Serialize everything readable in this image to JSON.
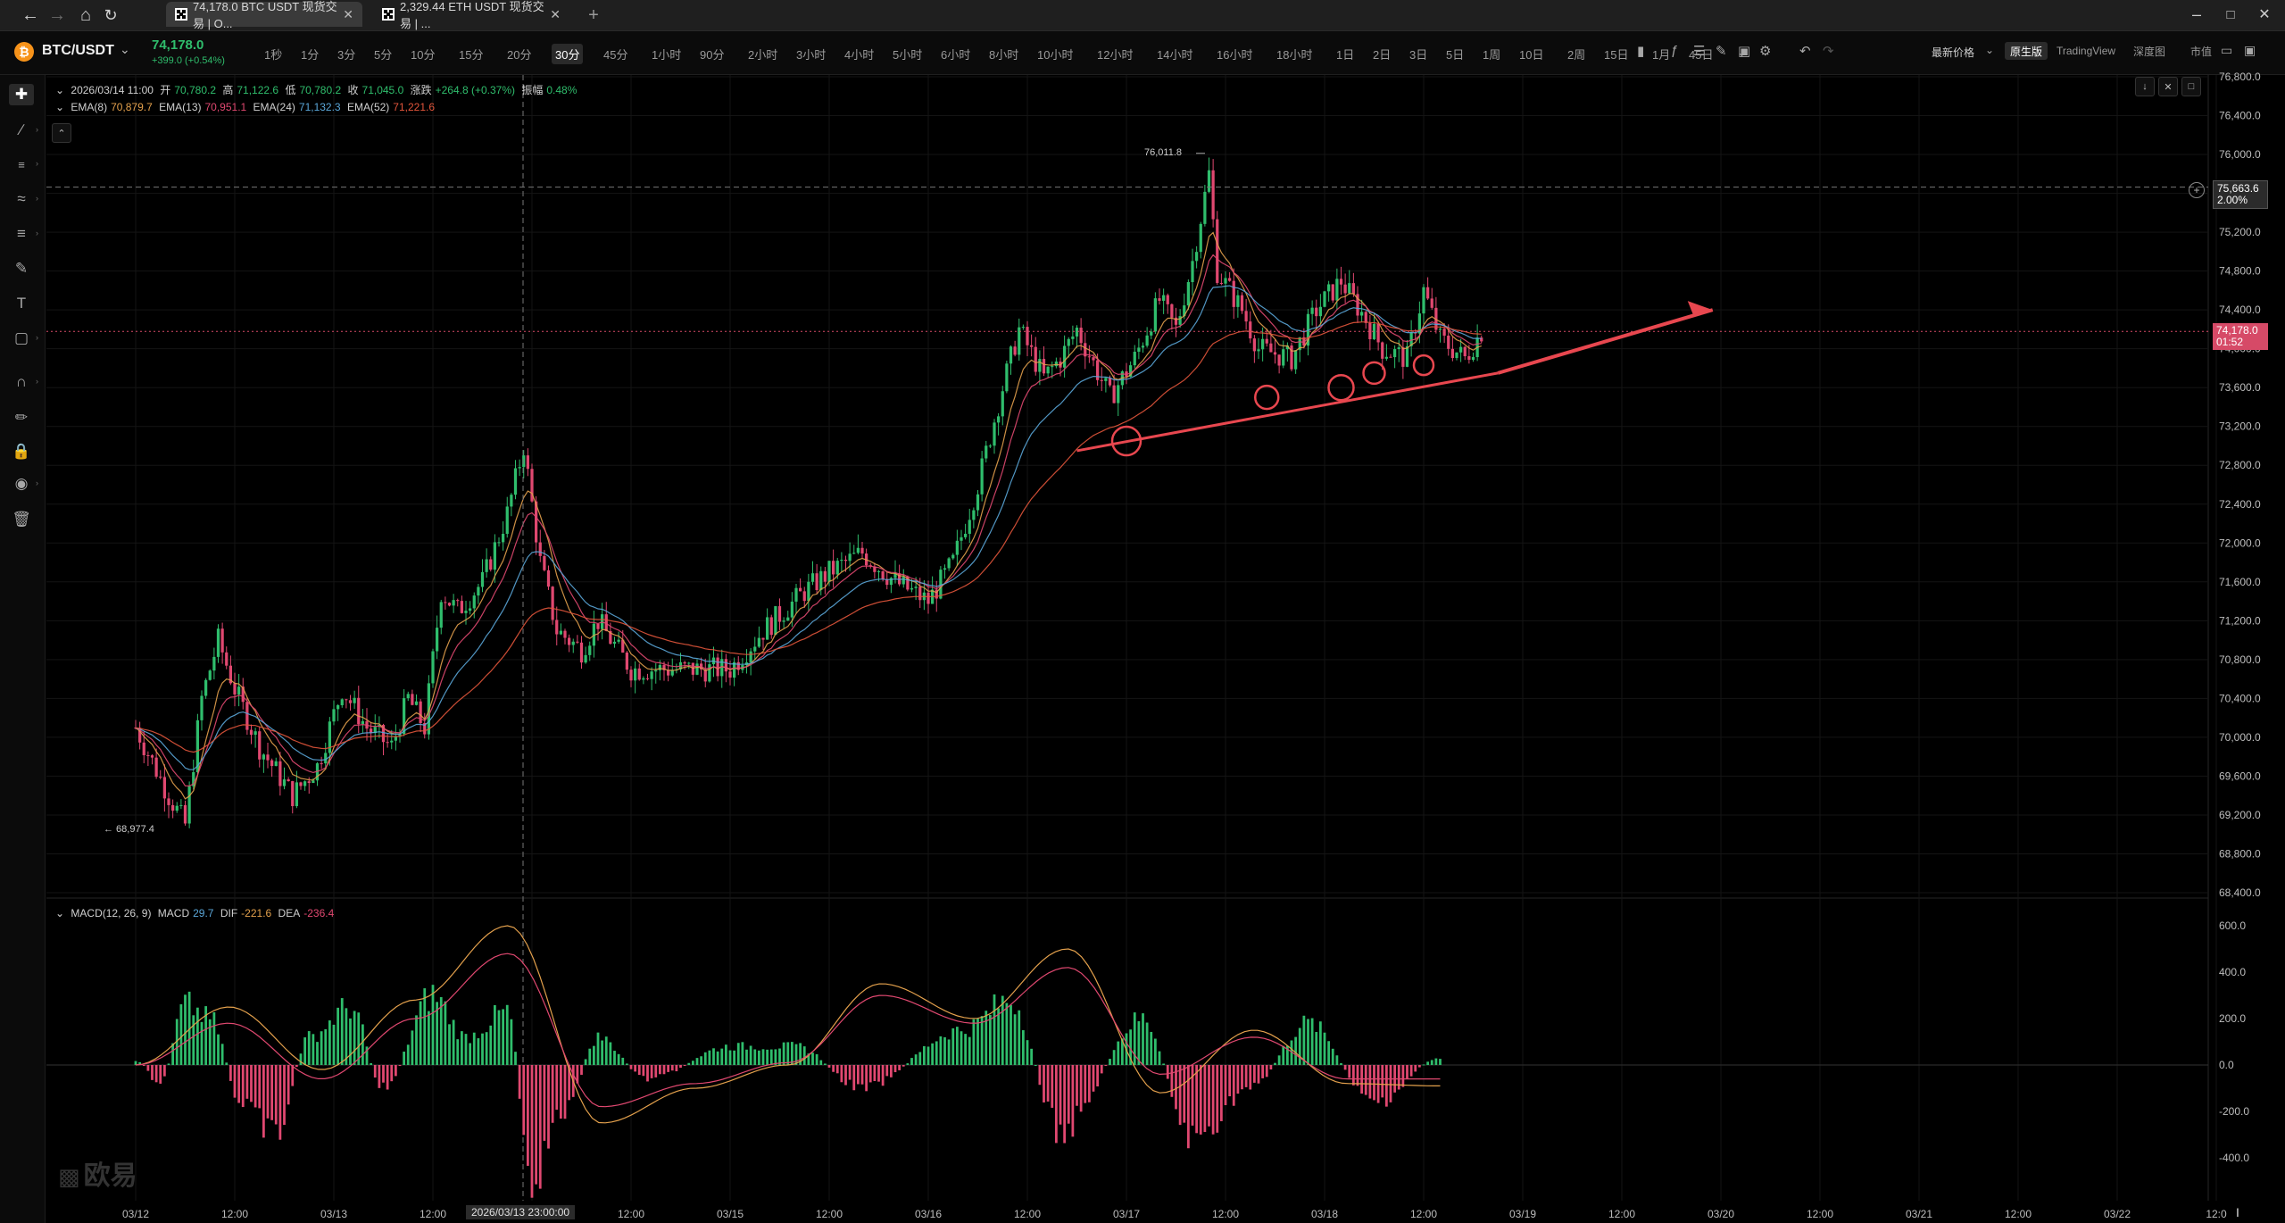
{
  "browser": {
    "tabs": [
      {
        "title": "74,178.0 BTC USDT 现货交易 | O...",
        "active": true
      },
      {
        "title": "2,329.44 ETH USDT 现货交易 | ...",
        "active": false
      }
    ],
    "new_tab": "+"
  },
  "pair": {
    "symbol": "BTC/USDT",
    "last_price": "74,178.0",
    "change": "+399.0 (+0.54%)"
  },
  "intervals": [
    "1秒",
    "1分",
    "3分",
    "5分",
    "10分",
    "15分",
    "20分",
    "30分",
    "45分",
    "1小时",
    "90分",
    "2小时",
    "3小时",
    "4小时",
    "5小时",
    "6小时",
    "8小时",
    "10小时",
    "12小时",
    "14小时",
    "16小时",
    "18小时",
    "1日",
    "2日",
    "3日",
    "5日",
    "1周",
    "10日",
    "2周",
    "15日",
    "1月",
    "45日"
  ],
  "active_interval": "30分",
  "header_right": {
    "price_type": "最新价格",
    "views": [
      "原生版",
      "TradingView",
      "深度图",
      "市值"
    ],
    "active_view": "原生版"
  },
  "ohlc_legend": {
    "date": "2026/03/14 11:00",
    "open_label": "开",
    "open": "70,780.2",
    "high_label": "高",
    "high": "71,122.6",
    "low_label": "低",
    "low": "70,780.2",
    "close_label": "收",
    "close": "71,045.0",
    "chg_label": "涨跌",
    "chg": "+264.8 (+0.37%)",
    "amp_label": "振幅",
    "amp": "0.48%"
  },
  "ema_legend": [
    {
      "name": "EMA(8)",
      "value": "70,879.7",
      "color": "#e3a04c"
    },
    {
      "name": "EMA(13)",
      "value": "70,951.1",
      "color": "#e04870"
    },
    {
      "name": "EMA(24)",
      "value": "71,132.3",
      "color": "#5aa6d8"
    },
    {
      "name": "EMA(52)",
      "value": "71,221.6",
      "color": "#e2553b"
    }
  ],
  "macd_legend": {
    "name": "MACD(12, 26, 9)",
    "macd_label": "MACD",
    "macd": "29.7",
    "dif_label": "DIF",
    "dif": "-221.6",
    "dea_label": "DEA",
    "dea": "-236.4"
  },
  "annotations": {
    "high_label": "76,011.8",
    "low_label": "← 68,977.4",
    "dashed_level": "75,663.6",
    "dashed_level_pct": "2.00%",
    "current_price": "74,178.0",
    "countdown": "01:52",
    "crosshair_time": "2026/03/13 23:00:00"
  },
  "watermark": "欧易",
  "colors": {
    "up": "#2fbd6c",
    "down": "#e04870",
    "accent_line": "#e8474f",
    "background": "#000000"
  },
  "chart_data": [
    {
      "type": "candlestick",
      "title": "",
      "ylim": [
        68400,
        76800
      ],
      "y_ticks": [
        "76,800.0",
        "76,400.0",
        "76,000.0",
        "75,600.0",
        "75,200.0",
        "74,800.0",
        "74,400.0",
        "74,000.0",
        "73,600.0",
        "73,200.0",
        "72,800.0",
        "72,400.0",
        "72,000.0",
        "71,600.0",
        "71,200.0",
        "70,800.0",
        "70,400.0",
        "70,000.0",
        "69,600.0",
        "69,200.0",
        "68,800.0",
        "68,400.0"
      ],
      "x_ticks": [
        "03/12",
        "12:00",
        "03/13",
        "12:00",
        "2026/03/13 23:00:00",
        "12:00",
        "03/15",
        "12:00",
        "03/16",
        "12:00",
        "03/17",
        "12:00",
        "03/18",
        "12:00",
        "03/19",
        "12:00",
        "03/20",
        "12:00",
        "03/21",
        "12:00",
        "03/22",
        "12:0"
      ],
      "close_path": [
        {
          "t": "03/12 00:00",
          "close": 70100
        },
        {
          "t": "03/12 04:00",
          "close": 69400
        },
        {
          "t": "03/12 06:00",
          "close": 69100
        },
        {
          "t": "03/12 08:00",
          "close": 70400
        },
        {
          "t": "03/12 10:00",
          "close": 71000
        },
        {
          "t": "03/12 12:00",
          "close": 70500
        },
        {
          "t": "03/12 15:00",
          "close": 69900
        },
        {
          "t": "03/12 19:00",
          "close": 69400
        },
        {
          "t": "03/12 22:00",
          "close": 69700
        },
        {
          "t": "03/13 01:00",
          "close": 70500
        },
        {
          "t": "03/13 04:00",
          "close": 70100
        },
        {
          "t": "03/13 07:00",
          "close": 69900
        },
        {
          "t": "03/13 09:00",
          "close": 70400
        },
        {
          "t": "03/13 11:00",
          "close": 70100
        },
        {
          "t": "03/13 13:00",
          "close": 71500
        },
        {
          "t": "03/13 15:00",
          "close": 71300
        },
        {
          "t": "03/13 18:00",
          "close": 71600
        },
        {
          "t": "03/13 21:00",
          "close": 72300
        },
        {
          "t": "03/13 23:00",
          "close": 73000
        },
        {
          "t": "03/14 01:00",
          "close": 71800
        },
        {
          "t": "03/14 03:00",
          "close": 71100
        },
        {
          "t": "03/14 06:00",
          "close": 70900
        },
        {
          "t": "03/14 08:00",
          "close": 71200
        },
        {
          "t": "03/14 12:00",
          "close": 70700
        },
        {
          "t": "03/14 16:00",
          "close": 70700
        },
        {
          "t": "03/15 00:00",
          "close": 70700
        },
        {
          "t": "03/15 04:00",
          "close": 71100
        },
        {
          "t": "03/15 09:00",
          "close": 71500
        },
        {
          "t": "03/15 12:00",
          "close": 71700
        },
        {
          "t": "03/15 16:00",
          "close": 71900
        },
        {
          "t": "03/15 20:00",
          "close": 71600
        },
        {
          "t": "03/16 00:00",
          "close": 71400
        },
        {
          "t": "03/16 03:00",
          "close": 71800
        },
        {
          "t": "03/16 06:00",
          "close": 72600
        },
        {
          "t": "03/16 09:00",
          "close": 73600
        },
        {
          "t": "03/16 11:00",
          "close": 74200
        },
        {
          "t": "03/16 14:00",
          "close": 73700
        },
        {
          "t": "03/16 16:00",
          "close": 73900
        },
        {
          "t": "03/16 18:00",
          "close": 74200
        },
        {
          "t": "03/16 22:00",
          "close": 73500
        },
        {
          "t": "03/17 01:00",
          "close": 73900
        },
        {
          "t": "03/17 04:00",
          "close": 74500
        },
        {
          "t": "03/17 06:00",
          "close": 74200
        },
        {
          "t": "03/17 08:00",
          "close": 74900
        },
        {
          "t": "03/17 10:00",
          "close": 75800
        },
        {
          "t": "03/17 11:00",
          "close": 74800
        },
        {
          "t": "03/17 14:00",
          "close": 74400
        },
        {
          "t": "03/17 16:00",
          "close": 74000
        },
        {
          "t": "03/17 20:00",
          "close": 73900
        },
        {
          "t": "03/17 23:00",
          "close": 74400
        },
        {
          "t": "03/18 02:00",
          "close": 74700
        },
        {
          "t": "03/18 05:00",
          "close": 74300
        },
        {
          "t": "03/18 07:00",
          "close": 74000
        },
        {
          "t": "03/18 10:00",
          "close": 73900
        },
        {
          "t": "03/18 12:00",
          "close": 74600
        },
        {
          "t": "03/18 14:00",
          "close": 74100
        },
        {
          "t": "03/18 17:00",
          "close": 73900
        },
        {
          "t": "03/18 19:00",
          "close": 74178
        }
      ]
    },
    {
      "type": "bar",
      "title": "MACD(12, 26, 9)",
      "ylim": [
        -400,
        600
      ],
      "y_ticks": [
        "600.0",
        "400.0",
        "200.0",
        "0.0",
        "-200.0",
        "-400.0"
      ],
      "histogram": [
        {
          "t": "03/12 00:00",
          "value": 20
        },
        {
          "t": "03/12 03:00",
          "value": -80
        },
        {
          "t": "03/12 06:00",
          "value": 260
        },
        {
          "t": "03/12 09:00",
          "value": 200
        },
        {
          "t": "03/12 13:00",
          "value": -180
        },
        {
          "t": "03/12 17:00",
          "value": -300
        },
        {
          "t": "03/12 21:00",
          "value": 120
        },
        {
          "t": "03/13 02:00",
          "value": 250
        },
        {
          "t": "03/13 06:00",
          "value": -100
        },
        {
          "t": "03/13 12:00",
          "value": 300
        },
        {
          "t": "03/13 16:00",
          "value": 120
        },
        {
          "t": "03/13 21:00",
          "value": 230
        },
        {
          "t": "03/14 00:00",
          "value": -470
        },
        {
          "t": "03/14 04:00",
          "value": -200
        },
        {
          "t": "03/14 08:00",
          "value": 120
        },
        {
          "t": "03/14 14:00",
          "value": -60
        },
        {
          "t": "03/15 00:00",
          "value": 80
        },
        {
          "t": "03/15 08:00",
          "value": 80
        },
        {
          "t": "03/15 16:00",
          "value": -100
        },
        {
          "t": "03/16 04:00",
          "value": 150
        },
        {
          "t": "03/16 10:00",
          "value": 280
        },
        {
          "t": "03/16 16:00",
          "value": -280
        },
        {
          "t": "03/17 02:00",
          "value": 200
        },
        {
          "t": "03/17 08:00",
          "value": -320
        },
        {
          "t": "03/17 15:00",
          "value": -100
        },
        {
          "t": "03/17 22:00",
          "value": 180
        },
        {
          "t": "03/18 06:00",
          "value": -160
        },
        {
          "t": "03/18 14:00",
          "value": 30
        }
      ],
      "series": [
        {
          "name": "DIF",
          "values": [
            0,
            250,
            -20,
            280,
            600,
            -250,
            -100,
            0,
            350,
            200,
            500,
            -120,
            150,
            -80,
            -90
          ]
        },
        {
          "name": "DEA",
          "values": [
            0,
            180,
            -60,
            200,
            480,
            -180,
            -80,
            10,
            300,
            180,
            420,
            -40,
            120,
            -60,
            -60
          ]
        }
      ]
    }
  ]
}
